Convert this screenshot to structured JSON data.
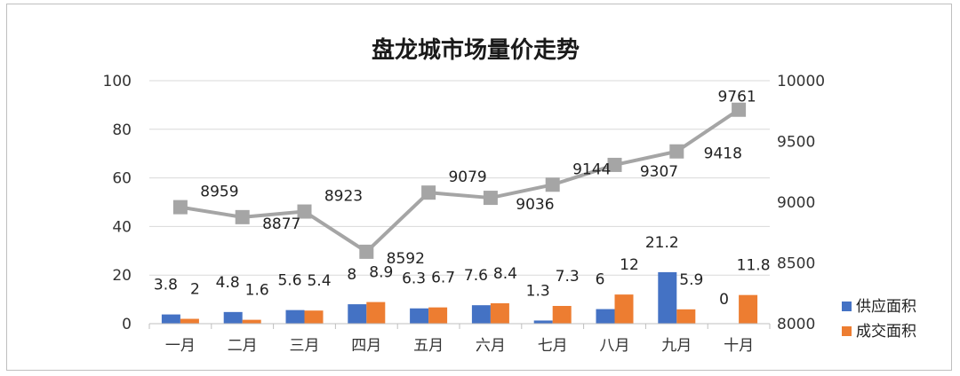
{
  "chart_data": {
    "type": "bar+line",
    "title": "盘龙城市场量价走势",
    "categories": [
      "一月",
      "二月",
      "三月",
      "四月",
      "五月",
      "六月",
      "七月",
      "八月",
      "九月",
      "十月"
    ],
    "series": [
      {
        "name": "供应面积",
        "type": "bar",
        "axis": "left",
        "color": "#4472C4",
        "values": [
          3.8,
          4.8,
          5.6,
          8,
          6.3,
          7.6,
          1.3,
          6,
          21.2,
          0
        ],
        "labels": [
          "3.8",
          "4.8",
          "5.6",
          "8",
          "6.3",
          "7.6",
          "1.3",
          "6",
          "21.2",
          "0"
        ]
      },
      {
        "name": "成交面积",
        "type": "bar",
        "axis": "left",
        "color": "#ED7D31",
        "values": [
          2,
          1.6,
          5.4,
          8.9,
          6.7,
          8.4,
          7.3,
          12,
          5.9,
          11.8
        ],
        "labels": [
          "2",
          "1.6",
          "5.4",
          "8.9",
          "6.7",
          "8.4",
          "7.3",
          "12",
          "5.9",
          "11.8"
        ]
      },
      {
        "name": "",
        "type": "line",
        "axis": "right",
        "color": "#A5A5A5",
        "values": [
          8959,
          8877,
          8923,
          8592,
          9079,
          9036,
          9144,
          9307,
          9418,
          9761
        ],
        "labels": [
          "8959",
          "8877",
          "8923",
          "8592",
          "9079",
          "9036",
          "9144",
          "9307",
          "9418",
          "9761"
        ]
      }
    ],
    "y_left": {
      "min": 0,
      "max": 100,
      "ticks": [
        "0",
        "20",
        "40",
        "60",
        "80",
        "100"
      ]
    },
    "y_right": {
      "min": 8000,
      "max": 10000,
      "ticks": [
        "8000",
        "8500",
        "9000",
        "9500",
        "10000"
      ]
    },
    "legend_position": "right",
    "grid": "horizontal"
  }
}
